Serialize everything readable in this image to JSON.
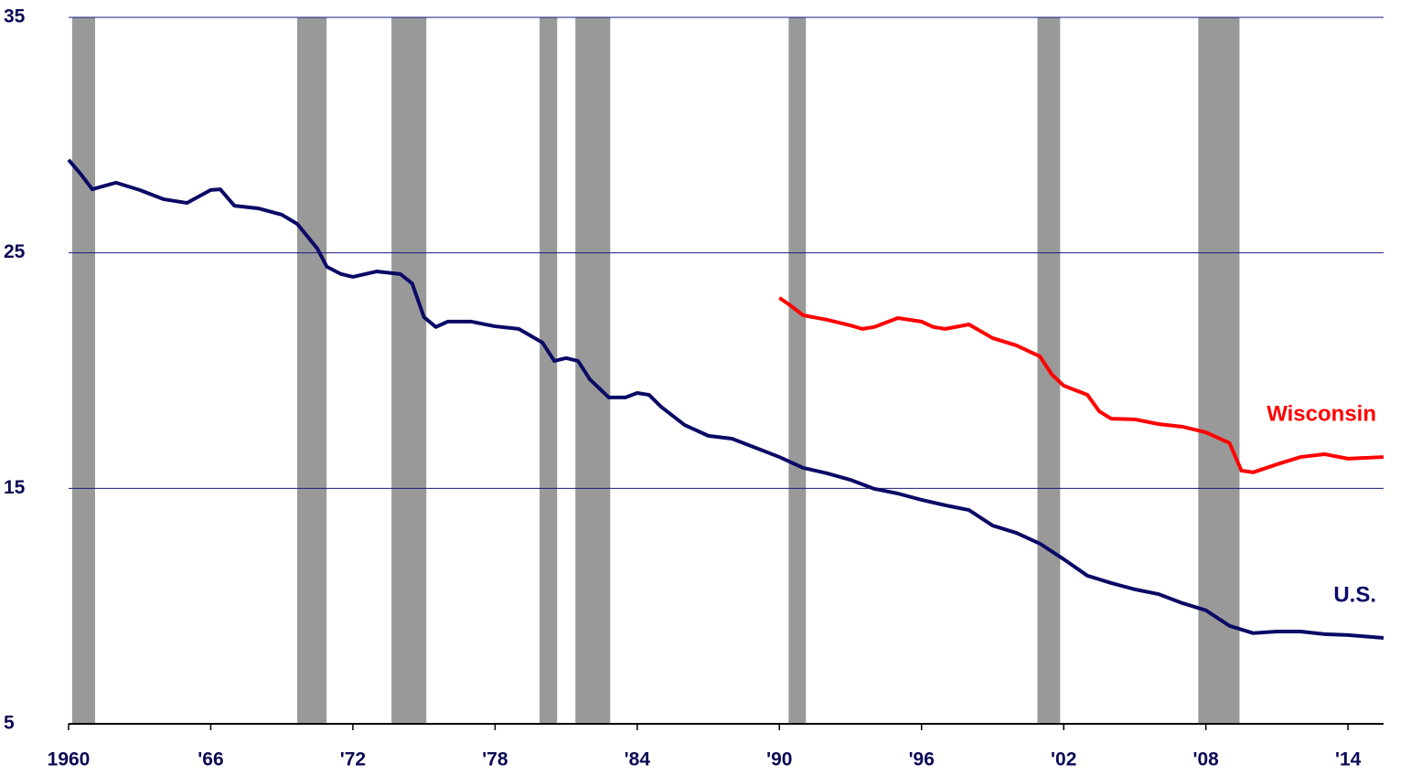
{
  "chart_data": {
    "type": "line",
    "xlim": [
      1960,
      2015.5
    ],
    "ylim": [
      5,
      35
    ],
    "yticks": [
      5,
      15,
      25,
      35
    ],
    "xticks": [
      {
        "value": 1960,
        "label": "1960"
      },
      {
        "value": 1966,
        "label": "'66"
      },
      {
        "value": 1972,
        "label": "'72"
      },
      {
        "value": 1978,
        "label": "'78"
      },
      {
        "value": 1984,
        "label": "'84"
      },
      {
        "value": 1990,
        "label": "'90"
      },
      {
        "value": 1996,
        "label": "'96"
      },
      {
        "value": 2002,
        "label": "'02"
      },
      {
        "value": 2008,
        "label": "'08"
      },
      {
        "value": 2014,
        "label": "'14"
      }
    ],
    "grid": true,
    "shaded_periods": [
      [
        1960.15,
        1961.12
      ],
      [
        1969.65,
        1970.89
      ],
      [
        1973.63,
        1975.1
      ],
      [
        1979.88,
        1980.62
      ],
      [
        1981.39,
        1982.86
      ],
      [
        1990.39,
        1991.12
      ],
      [
        2000.89,
        2001.85
      ],
      [
        2007.68,
        2009.42
      ]
    ],
    "shade_color": "#999999",
    "series": [
      {
        "name": "U.S.",
        "color": "#0a0a66",
        "x": [
          1960,
          1960.5,
          1961,
          1962,
          1963,
          1964,
          1965,
          1966,
          1966.4,
          1967,
          1968,
          1969,
          1969.65,
          1970.5,
          1970.9,
          1971.5,
          1972,
          1973,
          1974,
          1974.5,
          1975,
          1975.5,
          1976,
          1977,
          1978,
          1979,
          1980,
          1980.5,
          1981,
          1981.5,
          1982,
          1982.8,
          1983.5,
          1984,
          1984.5,
          1985,
          1986,
          1987,
          1988,
          1989,
          1990,
          1991,
          1992,
          1993,
          1994,
          1995,
          1996,
          1997,
          1998,
          1999,
          2000,
          2001,
          2002,
          2003,
          2004,
          2005,
          2006,
          2007,
          2008,
          2009,
          2010,
          2011,
          2012,
          2013,
          2014,
          2015.5
        ],
        "values": [
          28.95,
          28.36,
          27.7,
          27.98,
          27.67,
          27.28,
          27.12,
          27.67,
          27.7,
          27.0,
          26.89,
          26.62,
          26.23,
          25.18,
          24.41,
          24.1,
          23.98,
          24.21,
          24.1,
          23.7,
          22.27,
          21.85,
          22.08,
          22.08,
          21.88,
          21.77,
          21.19,
          20.41,
          20.53,
          20.41,
          19.63,
          18.86,
          18.86,
          19.05,
          18.97,
          18.47,
          17.69,
          17.23,
          17.11,
          16.72,
          16.33,
          15.87,
          15.64,
          15.36,
          14.98,
          14.78,
          14.51,
          14.28,
          14.08,
          13.42,
          13.11,
          12.65,
          11.99,
          11.29,
          10.98,
          10.71,
          10.51,
          10.13,
          9.82,
          9.16,
          8.85,
          8.92,
          8.92,
          8.81,
          8.77,
          8.65
        ]
      },
      {
        "name": "Wisconsin",
        "color": "#ff0000",
        "x": [
          1990,
          1990.5,
          1991,
          1992,
          1993,
          1993.5,
          1994,
          1995,
          1996,
          1996.5,
          1997,
          1998,
          1999,
          2000,
          2001,
          2001.5,
          2002,
          2003,
          2003.5,
          2004,
          2005,
          2006,
          2007,
          2008,
          2009,
          2009.5,
          2010,
          2011,
          2012,
          2013,
          2014,
          2015.5
        ],
        "values": [
          23.09,
          22.74,
          22.35,
          22.16,
          21.92,
          21.77,
          21.85,
          22.23,
          22.08,
          21.85,
          21.77,
          21.96,
          21.38,
          21.07,
          20.6,
          19.83,
          19.36,
          18.97,
          18.27,
          17.96,
          17.93,
          17.73,
          17.62,
          17.38,
          16.92,
          15.75,
          15.68,
          16.02,
          16.33,
          16.45,
          16.26,
          16.33
        ]
      }
    ]
  }
}
